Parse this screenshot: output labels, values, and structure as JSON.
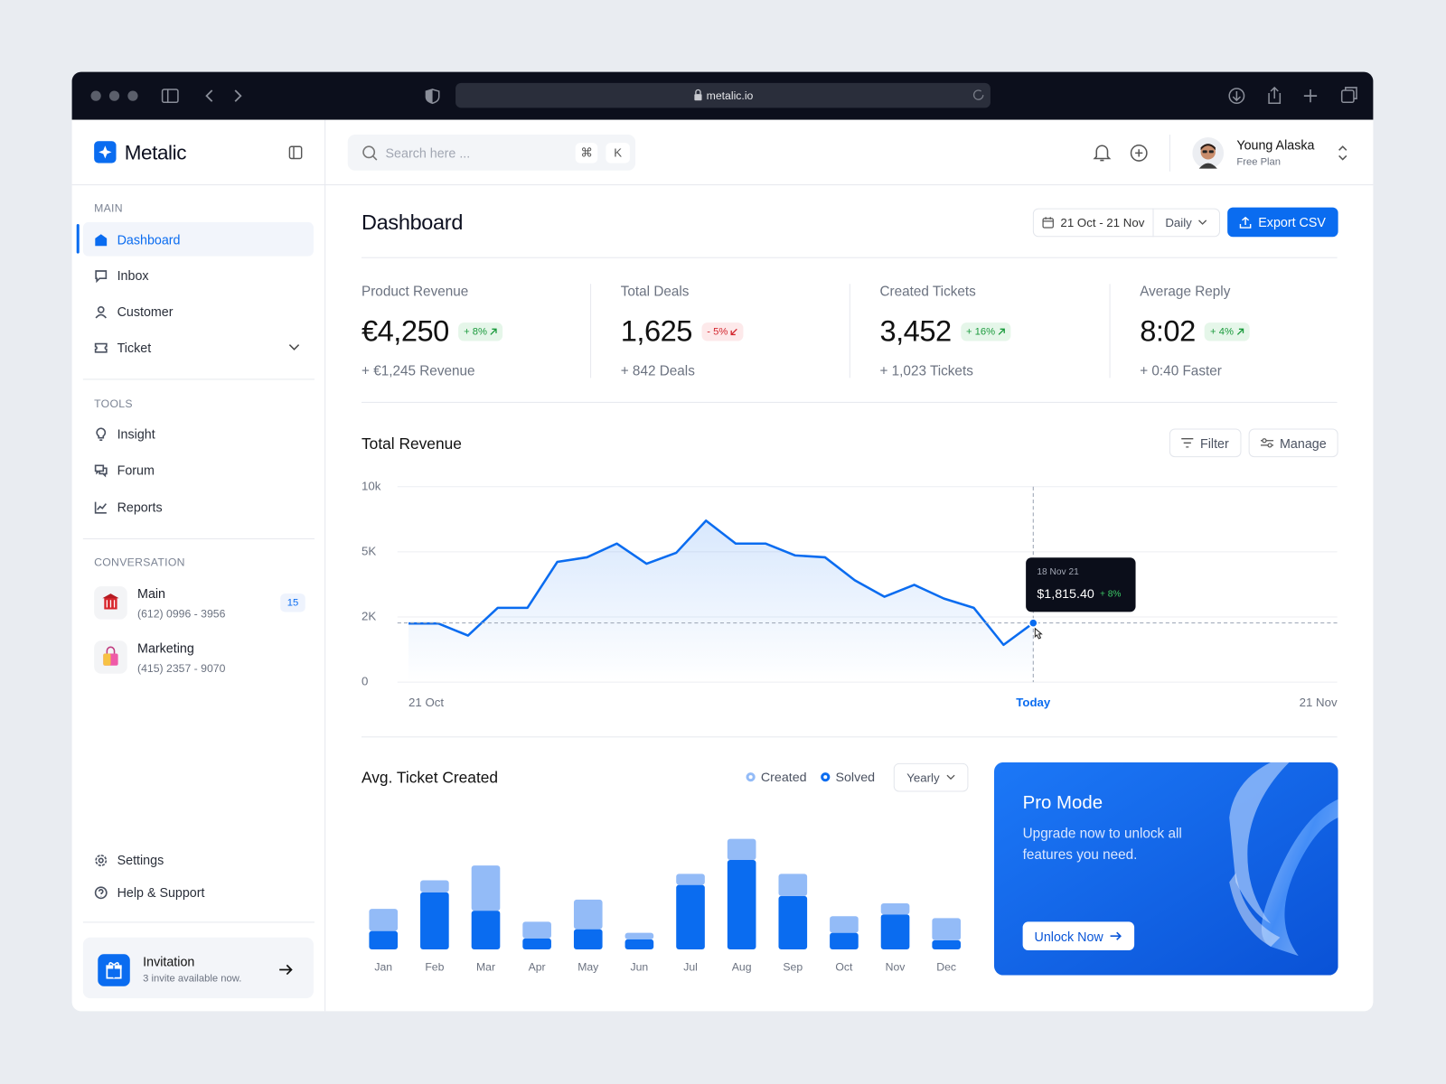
{
  "browser": {
    "url": "metalic.io"
  },
  "sidebar": {
    "brand": "Metalic",
    "sections": [
      {
        "title": "MAIN",
        "items": [
          "Dashboard",
          "Inbox",
          "Customer",
          "Ticket"
        ]
      },
      {
        "title": "TOOLS",
        "items": [
          "Insight",
          "Forum",
          "Reports"
        ]
      }
    ],
    "conversation": {
      "title": "CONVERSATION",
      "items": [
        {
          "name": "Main",
          "phone": "(612) 0996 - 3956",
          "badge": 15
        },
        {
          "name": "Marketing",
          "phone": "(415) 2357 - 9070"
        }
      ]
    },
    "footer_items": [
      "Settings",
      "Help & Support"
    ],
    "invitation": {
      "title": "Invitation",
      "subtitle": "3 invite available now."
    }
  },
  "header": {
    "search_placeholder": "Search here ...",
    "shortcut": [
      "⌘",
      "K"
    ],
    "user": {
      "name": "Young Alaska",
      "plan": "Free Plan"
    }
  },
  "dashboard": {
    "title": "Dashboard",
    "date_range": "21 Oct - 21 Nov",
    "period": "Daily",
    "export": "Export CSV"
  },
  "kpis": [
    {
      "label": "Product Revenue",
      "value": "€4,250",
      "change": "+ 8%",
      "note": "+ €1,245 Revenue"
    },
    {
      "label": "Total Deals",
      "value": "1,625",
      "change": "- 5%",
      "note": "+ 842 Deals"
    },
    {
      "label": "Created Tickets",
      "value": "3,452",
      "change": "+ 16%",
      "note": "+ 1,023 Tickets"
    },
    {
      "label": "Average Reply",
      "value": "8:02",
      "change": "+ 4%",
      "note": "+ 0:40 Faster"
    }
  ],
  "chart_data": [
    {
      "type": "line",
      "title": "Total Revenue",
      "buttons": [
        "Filter",
        "Manage"
      ],
      "categories": [
        "21 Oct",
        null,
        null,
        null,
        null,
        null,
        null,
        null,
        null,
        null,
        null,
        null,
        null,
        null,
        null,
        null,
        null,
        null,
        null,
        null,
        null,
        "Today",
        null,
        null,
        null,
        null,
        null,
        null,
        null,
        null,
        null,
        "21 Nov"
      ],
      "values": [
        1800,
        1800,
        1429,
        2423,
        2423,
        4535,
        4746,
        5634,
        4451,
        4958,
        7394,
        5634,
        5634,
        4831,
        4746,
        3690,
        2930,
        3479,
        2845,
        2423,
        1143,
        1815.4,
        null,
        null,
        null,
        null,
        null,
        null,
        null,
        null,
        null,
        null
      ],
      "value_labels": [
        null,
        null,
        null,
        null,
        null,
        null,
        null,
        null,
        null,
        null,
        null,
        null,
        null,
        null,
        null,
        null,
        null,
        null,
        null,
        null,
        null,
        "$1,815.40",
        null,
        null,
        null,
        null,
        null,
        null,
        null,
        null,
        null,
        null
      ],
      "tooltip": {
        "date": "18 Nov 21",
        "change": "+ 8%"
      },
      "color": "#0a6cf0",
      "ylim": [
        0,
        10000
      ],
      "yticks": [
        0,
        {
          "value": 2000,
          "label": "2K"
        },
        {
          "value": 5000,
          "label": "5K"
        },
        {
          "value": 10000,
          "label": "10k"
        }
      ],
      "grid": true
    },
    {
      "type": "bar",
      "title": "Avg. Ticket Created",
      "period": "Yearly",
      "stacked": true,
      "categories": [
        "Jan",
        "Feb",
        "Mar",
        "Apr",
        "May",
        "Jun",
        "Jul",
        "Aug",
        "Sep",
        "Oct",
        "Nov",
        "Dec"
      ],
      "series": [
        {
          "name": "Created",
          "color": "#93bbf7",
          "values": [
            24,
            13,
            49,
            18,
            32,
            7,
            12,
            23,
            24,
            18,
            12,
            24
          ]
        },
        {
          "name": "Solved",
          "color": "#0a6cf0",
          "values": [
            20,
            62,
            42,
            12,
            22,
            11,
            70,
            97,
            58,
            18,
            38,
            10
          ]
        }
      ],
      "ylim": [
        0,
        150
      ]
    }
  ],
  "promo": {
    "title": "Pro Mode",
    "text": "Upgrade now to unlock all features you need.",
    "button": "Unlock Now"
  }
}
